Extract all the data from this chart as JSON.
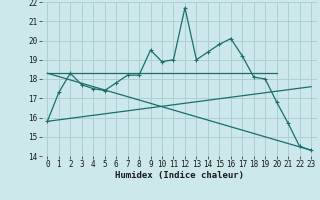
{
  "xlabel": "Humidex (Indice chaleur)",
  "background_color": "#cce8ea",
  "grid_color": "#aacccc",
  "line_color": "#1a6e6a",
  "xlim": [
    -0.5,
    23.5
  ],
  "ylim": [
    14,
    22
  ],
  "xticks": [
    0,
    1,
    2,
    3,
    4,
    5,
    6,
    7,
    8,
    9,
    10,
    11,
    12,
    13,
    14,
    15,
    16,
    17,
    18,
    19,
    20,
    21,
    22,
    23
  ],
  "yticks": [
    14,
    15,
    16,
    17,
    18,
    19,
    20,
    21,
    22
  ],
  "series_main": {
    "x": [
      0,
      1,
      2,
      3,
      4,
      5,
      6,
      7,
      8,
      9,
      10,
      11,
      12,
      13,
      14,
      15,
      16,
      17,
      18,
      19,
      20,
      21,
      22,
      23
    ],
    "y": [
      15.8,
      17.3,
      18.3,
      17.7,
      17.5,
      17.4,
      17.8,
      18.2,
      18.2,
      19.5,
      18.9,
      19.0,
      21.7,
      19.0,
      19.4,
      19.8,
      20.1,
      19.2,
      18.1,
      18.0,
      16.8,
      15.7,
      14.5,
      14.3
    ]
  },
  "series_flat": {
    "x": [
      0,
      20
    ],
    "y": [
      18.3,
      18.3
    ]
  },
  "series_desc": {
    "x": [
      0,
      23
    ],
    "y": [
      18.3,
      14.3
    ]
  },
  "series_asc": {
    "x": [
      0,
      23
    ],
    "y": [
      15.8,
      17.6
    ]
  }
}
